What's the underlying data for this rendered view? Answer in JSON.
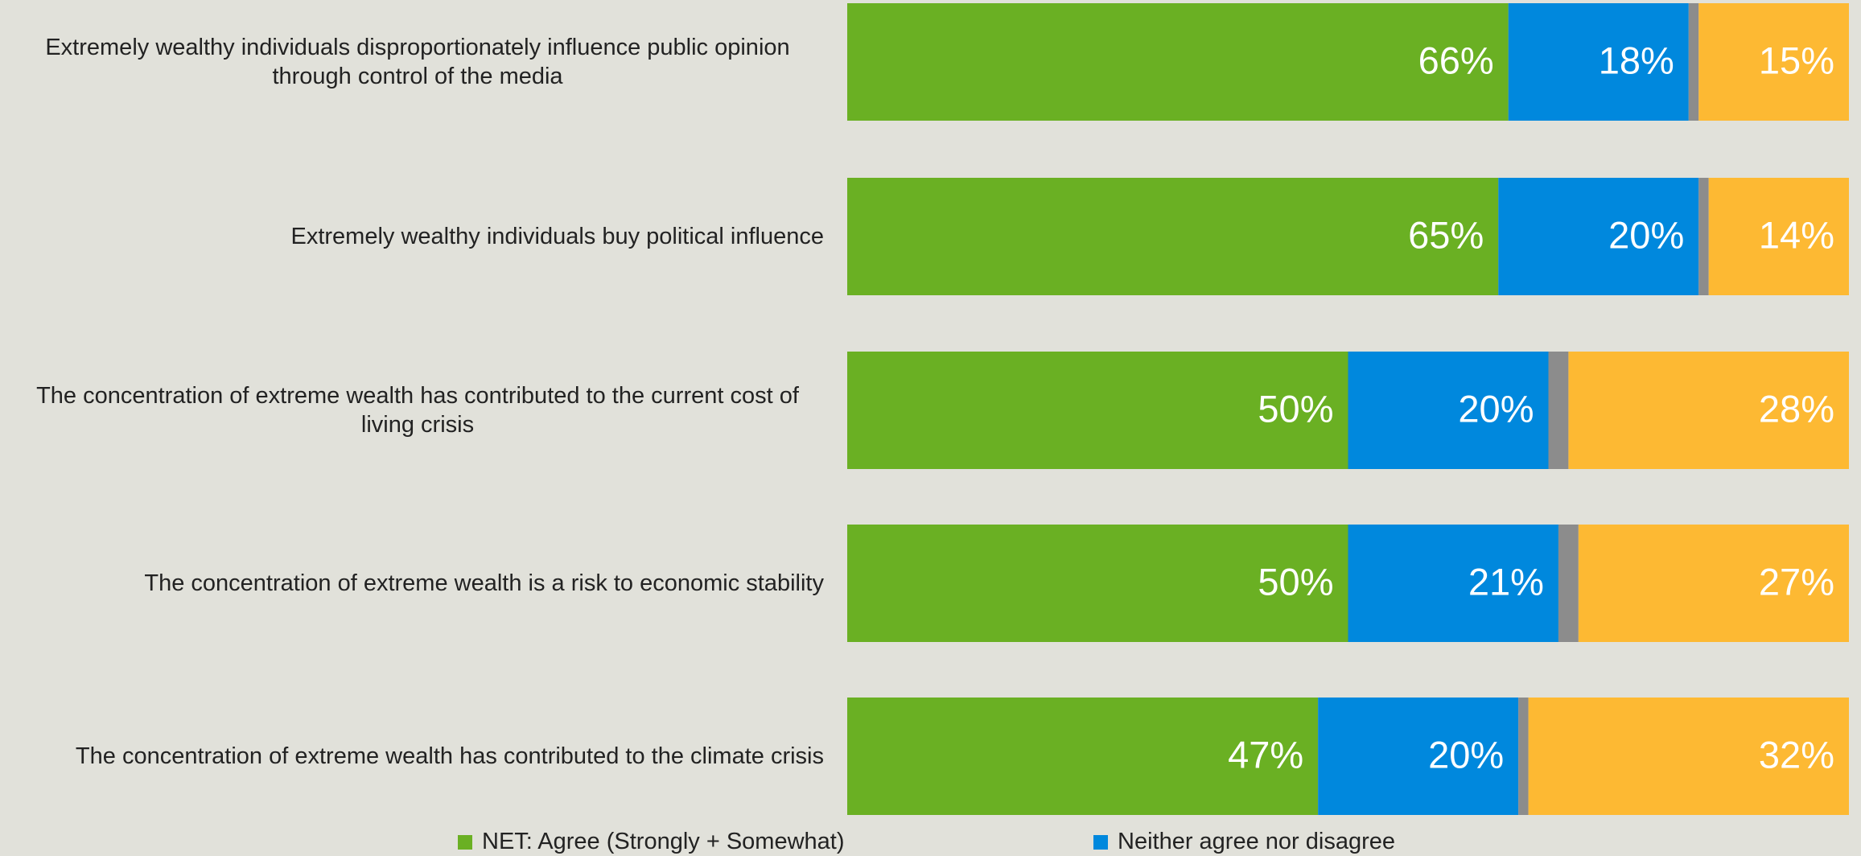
{
  "chart_data": {
    "type": "stacked-bar-horizontal",
    "categories": [
      "Extremely wealthy individuals disproportionately influence public opinion through control of the media",
      "Extremely wealthy individuals buy political influence",
      "The concentration of extreme wealth has contributed to the current cost of living crisis",
      "The concentration of extreme wealth is a risk to economic stability",
      "The concentration of extreme wealth has contributed to the climate crisis"
    ],
    "xlim": [
      0,
      100
    ],
    "series": [
      {
        "name": "NET: Agree (Strongly + Somewhat)",
        "color": "#6ab023",
        "values": [
          66,
          65,
          50,
          50,
          47
        ],
        "value_labels": [
          "66%",
          "65%",
          "50%",
          "50%",
          "47%"
        ]
      },
      {
        "name": "Neither agree nor disagree",
        "color": "#0088dd",
        "values": [
          18,
          20,
          20,
          21,
          20
        ],
        "value_labels": [
          "18%",
          "20%",
          "20%",
          "21%",
          "20%"
        ]
      },
      {
        "color": "#8c8c8c",
        "values": [
          1,
          1,
          2,
          2,
          1
        ]
      },
      {
        "color": "#fdb933",
        "values": [
          15,
          14,
          28,
          27,
          32
        ],
        "value_labels": [
          "15%",
          "14%",
          "28%",
          "27%",
          "32%"
        ]
      }
    ]
  }
}
